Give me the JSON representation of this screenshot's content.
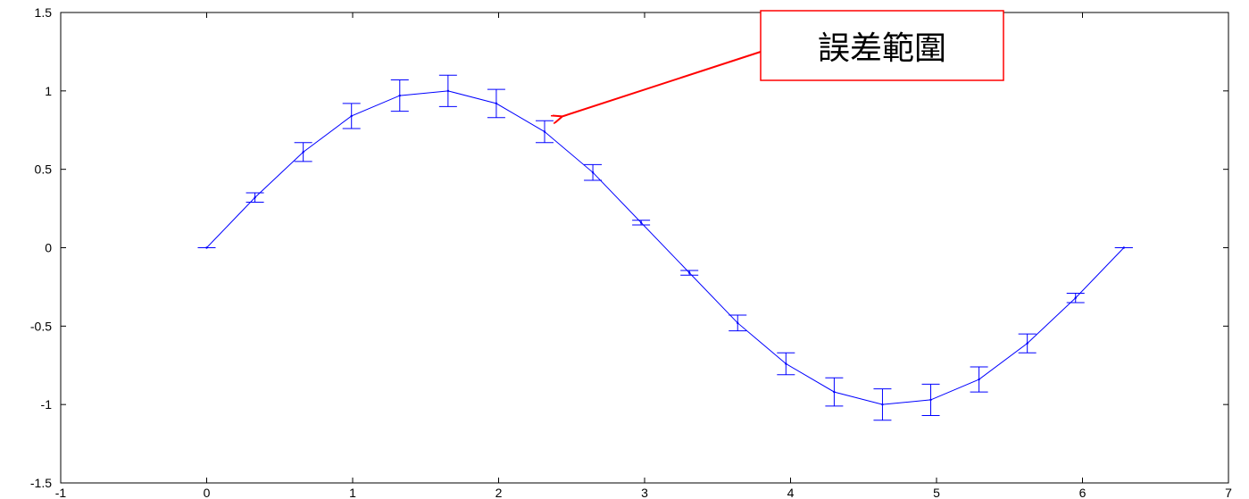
{
  "chart_data": {
    "type": "line",
    "title": "",
    "xlabel": "",
    "ylabel": "",
    "xlim": [
      -1,
      7
    ],
    "ylim": [
      -1.5,
      1.5
    ],
    "x_ticks": [
      -1,
      0,
      1,
      2,
      3,
      4,
      5,
      6,
      7
    ],
    "y_ticks": [
      -1.5,
      -1,
      -0.5,
      0,
      0.5,
      1,
      1.5
    ],
    "x_tick_labels": [
      "-1",
      "0",
      "1",
      "2",
      "3",
      "4",
      "5",
      "6",
      "7"
    ],
    "y_tick_labels": [
      "-1.5",
      "-1",
      "-0.5",
      "0",
      "0.5",
      "1",
      "1.5"
    ],
    "grid": false,
    "series": [
      {
        "x": [
          0,
          0.3307,
          0.6614,
          0.9921,
          1.3228,
          1.6535,
          1.9842,
          2.3149,
          2.6456,
          2.9762,
          3.3069,
          3.6376,
          3.9683,
          4.299,
          4.6297,
          4.9604,
          5.2911,
          5.6218,
          5.9525,
          6.2832
        ],
        "y": [
          0,
          0.32,
          0.61,
          0.84,
          0.97,
          1.0,
          0.92,
          0.74,
          0.48,
          0.16,
          -0.16,
          -0.48,
          -0.74,
          -0.92,
          -1.0,
          -0.97,
          -0.84,
          -0.61,
          -0.32,
          0
        ],
        "error": [
          0,
          0.03,
          0.06,
          0.08,
          0.1,
          0.1,
          0.09,
          0.07,
          0.05,
          0.015,
          0.015,
          0.05,
          0.07,
          0.09,
          0.1,
          0.1,
          0.08,
          0.06,
          0.03,
          0
        ],
        "color": "#0000ff"
      }
    ],
    "annotation": {
      "text": "誤差範圍",
      "arrow_color": "#ff0000",
      "box_color": "#ff0000"
    }
  }
}
